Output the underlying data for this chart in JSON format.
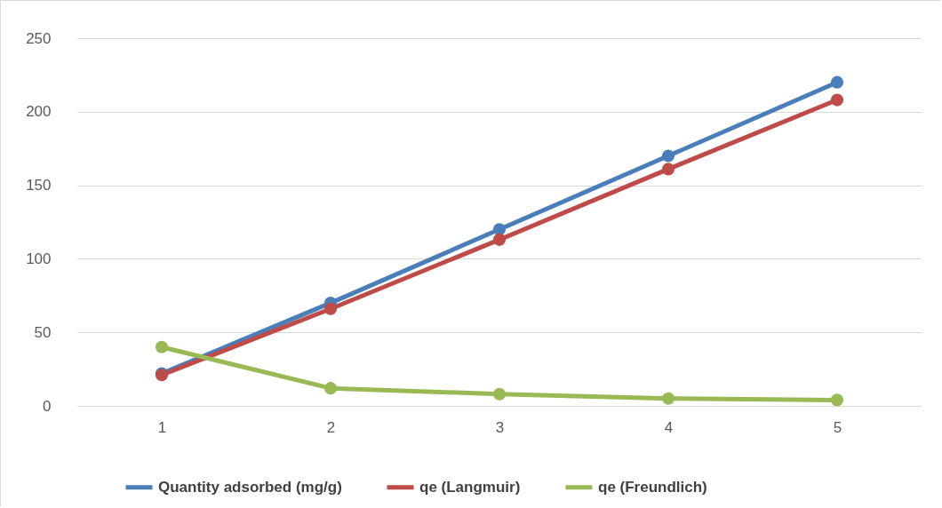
{
  "chart_data": {
    "type": "line",
    "categories": [
      "1",
      "2",
      "3",
      "4",
      "5"
    ],
    "series": [
      {
        "name": "Quantity adsorbed (mg/g)",
        "color": "#4a7ebb",
        "values": [
          22,
          70,
          120,
          170,
          220
        ]
      },
      {
        "name": "qe (Langmuir)",
        "color": "#be4b48",
        "values": [
          21,
          66,
          113,
          161,
          208
        ]
      },
      {
        "name": "qe (Freundlich)",
        "color": "#98b954",
        "values": [
          40,
          12,
          8,
          5,
          4
        ]
      }
    ],
    "ylim": [
      0,
      250
    ],
    "yticks": [
      0,
      50,
      100,
      150,
      200,
      250
    ],
    "grid": "y",
    "legend": "bottom",
    "marker": "circle",
    "line_style": "solid"
  }
}
